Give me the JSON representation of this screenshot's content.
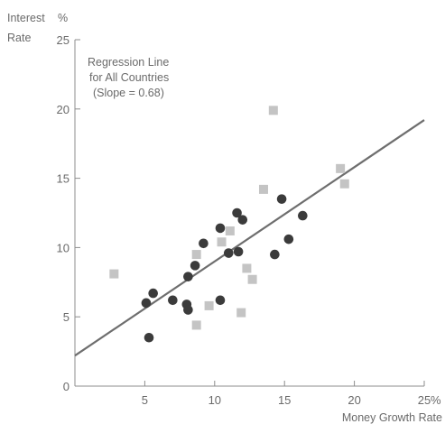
{
  "chart_data": {
    "type": "scatter",
    "title": "",
    "xlabel": "Money Growth Rate",
    "ylabel": "Interest Rate",
    "y_label_lines": [
      "Interest",
      "Rate"
    ],
    "y_unit": "%",
    "x_unit": "%",
    "xlim": [
      0,
      25
    ],
    "ylim": [
      0,
      25
    ],
    "x_ticks": [
      "5",
      "10",
      "15",
      "20",
      "25"
    ],
    "y_ticks": [
      "0",
      "5",
      "10",
      "15",
      "20",
      "25"
    ],
    "grid": false,
    "annotation_lines": [
      "Regression Line",
      "for All Countries",
      "(Slope = 0.68)"
    ],
    "regression": {
      "slope": 0.68,
      "intercept": 2.2
    },
    "series": [
      {
        "marker": "circle",
        "color": "#3b3b3b",
        "points": [
          [
            5.1,
            6.0
          ],
          [
            5.6,
            6.7
          ],
          [
            5.3,
            3.5
          ],
          [
            7.0,
            6.2
          ],
          [
            8.0,
            5.9
          ],
          [
            8.1,
            5.5
          ],
          [
            8.1,
            7.9
          ],
          [
            8.6,
            8.7
          ],
          [
            9.2,
            10.3
          ],
          [
            10.4,
            11.4
          ],
          [
            10.4,
            6.2
          ],
          [
            11.0,
            9.6
          ],
          [
            11.6,
            12.5
          ],
          [
            11.7,
            9.7
          ],
          [
            12.0,
            12.0
          ],
          [
            14.3,
            9.5
          ],
          [
            14.8,
            13.5
          ],
          [
            15.3,
            10.6
          ],
          [
            16.3,
            12.3
          ]
        ]
      },
      {
        "marker": "square",
        "color": "#c4c4c4",
        "points": [
          [
            2.8,
            8.1
          ],
          [
            8.7,
            9.5
          ],
          [
            8.7,
            4.4
          ],
          [
            9.6,
            5.8
          ],
          [
            10.5,
            10.4
          ],
          [
            11.1,
            11.2
          ],
          [
            11.9,
            5.3
          ],
          [
            12.3,
            8.5
          ],
          [
            12.7,
            7.7
          ],
          [
            13.5,
            14.2
          ],
          [
            14.2,
            19.9
          ],
          [
            19.0,
            15.7
          ],
          [
            19.3,
            14.6
          ]
        ]
      }
    ],
    "line_color": "#6e6e6e",
    "axis_color": "#8c8c8c"
  }
}
